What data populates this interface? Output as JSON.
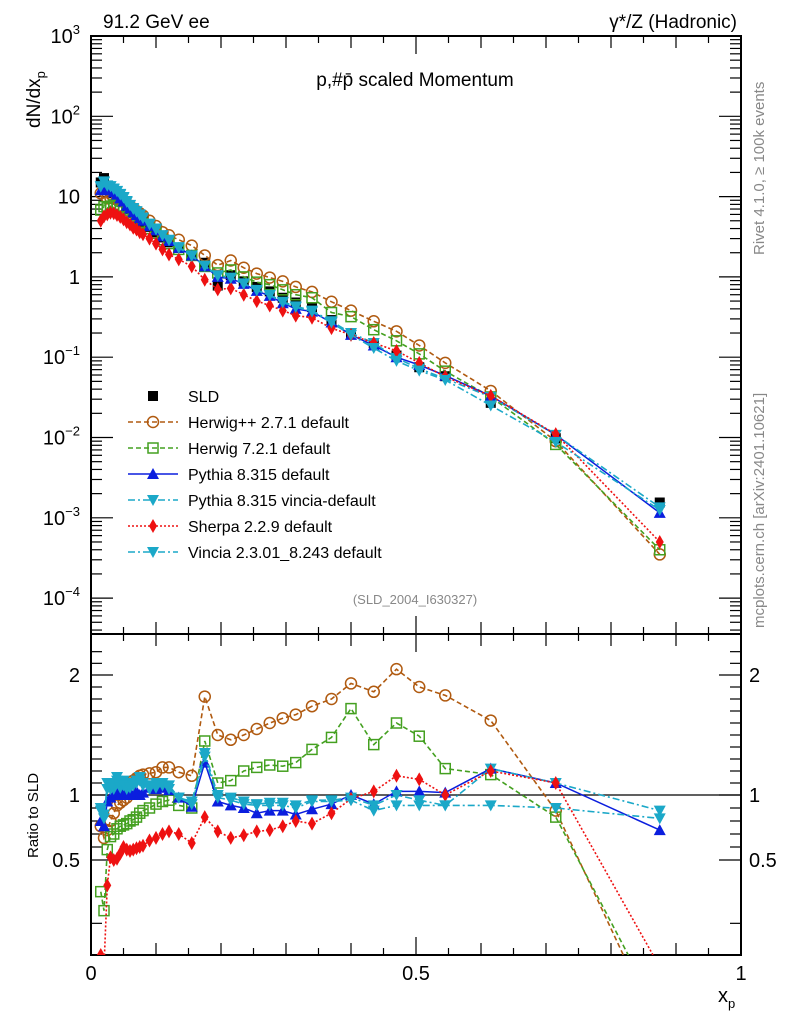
{
  "header": {
    "left_title": "91.2 GeV ee",
    "right_title": "γ*/Z (Hadronic)"
  },
  "side_labels": {
    "rivet": "Rivet 4.1.0, ≥ 100k events",
    "mcplots": "mcplots.cern.ch [arXiv:2401.10621]"
  },
  "chart_data": [
    {
      "type": "scatter",
      "title": "p,#p̄ scaled Momentum",
      "analysis_tag": "(SLD_2004_I630327)",
      "xlabel": "x_p",
      "ylabel": "dN/dx_p",
      "yscale": "log",
      "xlim": [
        0,
        1
      ],
      "ylim": [
        3e-05,
        1000
      ],
      "ytick_labels": [
        "10^3",
        "10^2",
        "10",
        "1",
        "10^-1",
        "10^-2",
        "10^-3",
        "10^-4"
      ],
      "legend_position": "bottom-left",
      "x": [
        0.015,
        0.02,
        0.025,
        0.03,
        0.035,
        0.04,
        0.045,
        0.05,
        0.055,
        0.06,
        0.065,
        0.07,
        0.075,
        0.08,
        0.09,
        0.1,
        0.11,
        0.12,
        0.135,
        0.155,
        0.175,
        0.195,
        0.215,
        0.235,
        0.255,
        0.275,
        0.295,
        0.315,
        0.34,
        0.37,
        0.4,
        0.435,
        0.47,
        0.505,
        0.545,
        0.615,
        0.715,
        0.875
      ],
      "series": [
        {
          "name": "SLD",
          "color": "#000000",
          "marker": "square",
          "line": "none",
          "values": [
            15,
            17,
            13,
            12,
            11,
            10,
            9.3,
            8.5,
            7.6,
            7,
            6.3,
            5.8,
            5.3,
            4.9,
            4.2,
            3.6,
            3.1,
            2.7,
            2.3,
            1.85,
            1.5,
            0.78,
            1.05,
            0.88,
            0.75,
            0.66,
            0.55,
            0.48,
            0.42,
            0.29,
            0.2,
            0.15,
            0.105,
            0.075,
            0.058,
            0.027,
            0.0098,
            0.00155
          ]
        },
        {
          "name": "Herwig++ 2.7.1 default",
          "color": "#b05a10",
          "marker": "open-circle",
          "line": "dashed",
          "values": [
            11,
            11.5,
            9.5,
            9.6,
            9.4,
            9.3,
            9.1,
            8.6,
            8.2,
            7.5,
            7.1,
            6.6,
            6.2,
            5.8,
            5.0,
            4.3,
            3.6,
            3.3,
            2.9,
            2.45,
            1.85,
            1.4,
            1.6,
            1.3,
            1.1,
            0.98,
            0.88,
            0.75,
            0.65,
            0.49,
            0.38,
            0.28,
            0.21,
            0.14,
            0.085,
            0.038,
            0.009,
            0.00035
          ]
        },
        {
          "name": "Herwig 7.2.1 default",
          "color": "#44a020",
          "marker": "open-square",
          "line": "dashed",
          "values": [
            6.8,
            7.5,
            7.2,
            7.6,
            7.9,
            7.6,
            7.5,
            7.2,
            6.8,
            6.0,
            5.6,
            5.2,
            4.8,
            4.6,
            4.0,
            3.5,
            2.9,
            2.6,
            2.2,
            1.85,
            1.35,
            1.12,
            1.22,
            1.0,
            0.86,
            0.8,
            0.69,
            0.6,
            0.55,
            0.36,
            0.32,
            0.22,
            0.16,
            0.11,
            0.067,
            0.032,
            0.0082,
            0.0004
          ]
        },
        {
          "name": "Pythia 8.315 default",
          "color": "#0b1ede",
          "marker": "filled-triangle-up",
          "line": "solid",
          "values": [
            12,
            13.5,
            12.3,
            12,
            11.3,
            10.6,
            9.5,
            8.7,
            7.7,
            7.1,
            6.4,
            5.9,
            5.4,
            5.0,
            4.3,
            3.8,
            3.2,
            2.8,
            2.3,
            1.85,
            1.35,
            1.0,
            0.95,
            0.82,
            0.67,
            0.58,
            0.47,
            0.4,
            0.37,
            0.27,
            0.19,
            0.14,
            0.1,
            0.08,
            0.059,
            0.033,
            0.0108,
            0.00115
          ]
        },
        {
          "name": "Pythia 8.315 vincia-default",
          "color": "#1ba8c8",
          "marker": "filled-triangle-down",
          "line": "dash-dot",
          "values": [
            13.5,
            15.5,
            13.8,
            13.5,
            12.6,
            11.8,
            10.8,
            9.9,
            8.8,
            7.9,
            7.2,
            6.6,
            6.0,
            5.5,
            4.6,
            4.0,
            3.3,
            2.9,
            2.35,
            1.85,
            1.38,
            1.05,
            0.98,
            0.83,
            0.69,
            0.6,
            0.49,
            0.43,
            0.38,
            0.28,
            0.2,
            0.15,
            0.098,
            0.072,
            0.054,
            0.032,
            0.0108,
            0.00135
          ]
        },
        {
          "name": "Sherpa 2.2.9 default",
          "color": "#ee1111",
          "marker": "filled-diamond",
          "line": "dotted",
          "values": [
            5.0,
            5.7,
            6.0,
            6.3,
            6.2,
            5.9,
            5.6,
            5.2,
            4.8,
            4.5,
            4.1,
            3.9,
            3.6,
            3.4,
            3.0,
            2.6,
            2.2,
            1.9,
            1.65,
            1.35,
            0.92,
            0.7,
            0.72,
            0.6,
            0.5,
            0.44,
            0.38,
            0.33,
            0.31,
            0.23,
            0.19,
            0.15,
            0.12,
            0.085,
            0.057,
            0.033,
            0.011,
            0.0005
          ]
        },
        {
          "name": "Vincia 2.3.01_8.243 default",
          "color": "#1ba8c8",
          "marker": "filled-triangle-down",
          "line": "dash-dot",
          "values": [
            13.3,
            15.2,
            13.6,
            13.4,
            12.4,
            11.6,
            10.6,
            9.7,
            8.6,
            7.8,
            7.0,
            6.5,
            5.9,
            5.4,
            4.5,
            3.9,
            3.3,
            2.85,
            2.3,
            1.82,
            1.36,
            1.03,
            0.97,
            0.82,
            0.68,
            0.59,
            0.48,
            0.42,
            0.37,
            0.27,
            0.19,
            0.13,
            0.09,
            0.068,
            0.052,
            0.025,
            0.0088,
            0.00125
          ]
        }
      ]
    },
    {
      "type": "scatter",
      "xlabel": "x_p",
      "ylabel": "Ratio to SLD",
      "xlim": [
        0,
        1
      ],
      "ylim": [
        0.35,
        2.3
      ],
      "ytick_labels": [
        "0.5",
        "1",
        "2"
      ],
      "xtick_labels": [
        "0",
        "0.5",
        "1"
      ],
      "reference_line": 1,
      "x": [
        0.015,
        0.02,
        0.025,
        0.03,
        0.035,
        0.04,
        0.045,
        0.05,
        0.055,
        0.06,
        0.065,
        0.07,
        0.075,
        0.08,
        0.09,
        0.1,
        0.11,
        0.12,
        0.135,
        0.155,
        0.175,
        0.195,
        0.215,
        0.235,
        0.255,
        0.275,
        0.295,
        0.315,
        0.34,
        0.37,
        0.4,
        0.435,
        0.47,
        0.505,
        0.545,
        0.615,
        0.715,
        0.875
      ],
      "series": [
        {
          "name": "Herwig++ 2.7.1 default",
          "color": "#b05a10",
          "marker": "open-circle",
          "line": "dashed",
          "values": [
            0.76,
            0.67,
            0.73,
            0.8,
            0.86,
            0.92,
            0.94,
            0.96,
            0.98,
            1.07,
            1.12,
            1.14,
            1.16,
            1.17,
            1.18,
            1.19,
            1.23,
            1.23,
            1.19,
            1.16,
            1.82,
            1.5,
            1.46,
            1.5,
            1.55,
            1.6,
            1.64,
            1.67,
            1.74,
            1.8,
            1.93,
            1.86,
            2.05,
            1.9,
            1.83,
            1.62,
            0.88,
            0.22
          ]
        },
        {
          "name": "Herwig 7.2.1 default",
          "color": "#44a020",
          "marker": "open-square",
          "line": "dashed",
          "values": [
            0.45,
            0.42,
            0.58,
            0.68,
            0.7,
            0.74,
            0.76,
            0.77,
            0.78,
            0.8,
            0.81,
            0.83,
            0.86,
            0.88,
            0.9,
            0.93,
            0.95,
            0.96,
            0.92,
            0.9,
            1.45,
            1.1,
            1.12,
            1.2,
            1.23,
            1.25,
            1.24,
            1.27,
            1.38,
            1.48,
            1.72,
            1.42,
            1.6,
            1.49,
            1.22,
            1.17,
            0.83,
            0.25
          ]
        },
        {
          "name": "Pythia 8.315 default",
          "color": "#0b1ede",
          "marker": "filled-triangle-up",
          "line": "solid",
          "values": [
            0.8,
            0.76,
            0.95,
            0.98,
            1.0,
            1.02,
            1.0,
            1.03,
            1.0,
            1.02,
            1.0,
            1.03,
            1.0,
            1.02,
            1.06,
            1.05,
            1.06,
            1.04,
            0.98,
            0.91,
            1.27,
            0.95,
            0.92,
            0.9,
            0.86,
            0.88,
            0.88,
            0.85,
            0.89,
            0.93,
            1.0,
            0.93,
            1.03,
            1.03,
            1.02,
            1.22,
            1.1,
            0.73
          ]
        },
        {
          "name": "Pythia 8.315 vincia-default",
          "color": "#1ba8c8",
          "marker": "filled-triangle-down",
          "line": "dash-dot",
          "values": [
            0.9,
            0.82,
            1.1,
            1.05,
            1.08,
            1.15,
            1.1,
            1.12,
            1.1,
            1.08,
            1.1,
            1.12,
            1.15,
            1.1,
            1.08,
            1.1,
            1.1,
            1.08,
            0.98,
            0.95,
            1.35,
            1.0,
            0.98,
            0.95,
            0.93,
            0.94,
            0.94,
            0.92,
            0.96,
            0.96,
            0.98,
            0.92,
            1.0,
            0.96,
            0.92,
            1.22,
            1.1,
            0.88
          ]
        },
        {
          "name": "Sherpa 2.2.9 default",
          "color": "#ee1111",
          "marker": "filled-diamond",
          "line": "dotted",
          "values": [
            0.35,
            0.33,
            0.46,
            0.52,
            0.5,
            0.51,
            0.55,
            0.6,
            0.58,
            0.57,
            0.58,
            0.59,
            0.6,
            0.61,
            0.65,
            0.67,
            0.7,
            0.72,
            0.7,
            0.63,
            0.83,
            0.72,
            0.67,
            0.69,
            0.72,
            0.73,
            0.76,
            0.8,
            0.78,
            0.86,
            0.97,
            1.03,
            1.16,
            1.13,
            1.0,
            1.2,
            1.1,
            0.33
          ]
        },
        {
          "name": "Vincia 2.3.01_8.243 default",
          "color": "#1ba8c8",
          "marker": "filled-triangle-down",
          "line": "dash-dot",
          "values": [
            0.88,
            0.85,
            1.05,
            1.1,
            1.05,
            1.12,
            1.06,
            1.08,
            1.05,
            1.06,
            1.08,
            1.1,
            1.12,
            1.08,
            1.05,
            1.06,
            1.08,
            1.05,
            0.98,
            0.93,
            1.32,
            0.98,
            0.96,
            0.93,
            0.92,
            0.92,
            0.92,
            0.9,
            0.95,
            0.95,
            0.96,
            0.88,
            0.92,
            0.92,
            0.92,
            0.92,
            0.9,
            0.82
          ]
        }
      ]
    }
  ]
}
